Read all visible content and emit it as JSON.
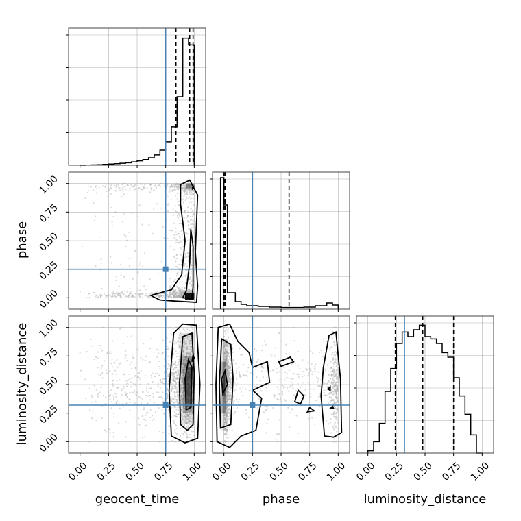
{
  "chart_data": {
    "type": "corner",
    "parameters": [
      "geocent_time",
      "phase",
      "luminosity_distance"
    ],
    "axis_range": [
      -0.1,
      1.1
    ],
    "ticks": [
      0,
      0.25,
      0.5,
      0.75,
      1.0
    ],
    "tick_labels": [
      "0.00",
      "0.25",
      "0.50",
      "0.75",
      "1.00"
    ],
    "truths": {
      "geocent_time": 0.75,
      "phase": 0.25,
      "luminosity_distance": 0.32
    },
    "truth_color": "#4682b4",
    "grid": true,
    "histograms": {
      "geocent_time": {
        "bin_edges": [
          0.0,
          0.05,
          0.1,
          0.15,
          0.2,
          0.25,
          0.3,
          0.35,
          0.4,
          0.45,
          0.5,
          0.55,
          0.6,
          0.65,
          0.7,
          0.75,
          0.8,
          0.85,
          0.9,
          0.95,
          1.0
        ],
        "counts": [
          0,
          1,
          2,
          3,
          5,
          7,
          9,
          12,
          15,
          20,
          26,
          34,
          45,
          62,
          90,
          140,
          230,
          410,
          760,
          720
        ],
        "ymax": 820,
        "quantiles": [
          0.84,
          0.96,
          0.99
        ]
      },
      "phase": {
        "bin_edges": [
          -0.03,
          0.0,
          0.03,
          0.1,
          0.15,
          0.2,
          0.3,
          0.4,
          0.5,
          0.6,
          0.7,
          0.8,
          0.9,
          0.95,
          1.0
        ],
        "counts": [
          960,
          760,
          120,
          55,
          35,
          25,
          20,
          15,
          12,
          12,
          15,
          25,
          45,
          30
        ],
        "ymax": 1000,
        "quantiles": [
          0.0,
          0.01,
          0.57
        ]
      },
      "luminosity_distance": {
        "bin_edges": [
          0.0,
          0.05,
          0.1,
          0.15,
          0.2,
          0.25,
          0.3,
          0.35,
          0.4,
          0.45,
          0.5,
          0.55,
          0.6,
          0.65,
          0.7,
          0.75,
          0.8,
          0.85,
          0.9,
          0.95,
          1.0
        ],
        "counts": [
          10,
          50,
          130,
          270,
          370,
          480,
          530,
          510,
          540,
          560,
          510,
          500,
          480,
          440,
          420,
          330,
          250,
          170,
          80,
          0
        ],
        "ymax": 600,
        "quantiles": [
          0.24,
          0.48,
          0.75
        ]
      }
    }
  },
  "colors": {
    "contour": "#000000",
    "points": "#b0b0b0",
    "grid": "#b0b0b0",
    "truth": "#4682b4"
  }
}
